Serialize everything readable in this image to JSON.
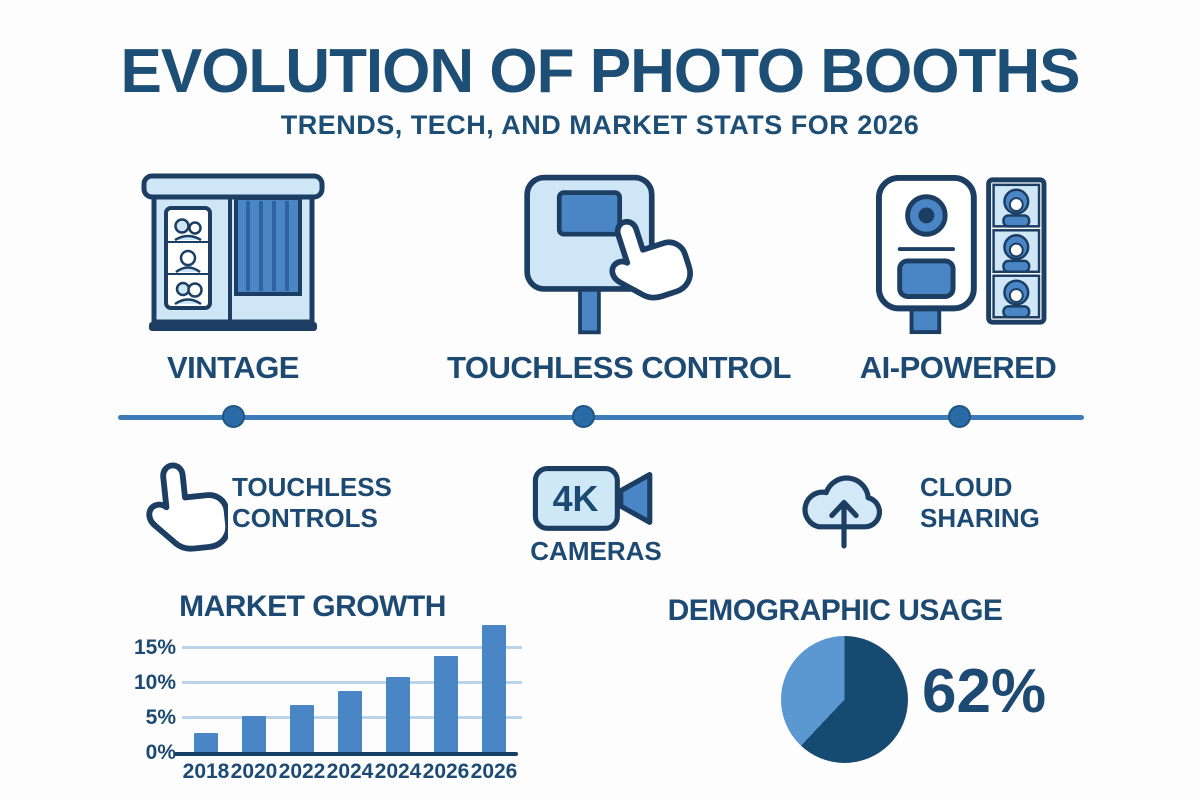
{
  "page": {
    "title": "EVOLUTION OF PHOTO BOOTHS",
    "subtitle": "TRENDS, TECH, AND MARKET STATS FOR 2026"
  },
  "eras": [
    {
      "label": "VINTAGE",
      "icon": "vintage-photo-booth-icon"
    },
    {
      "label": "TOUCHLESS CONTROL",
      "icon": "touchless-kiosk-icon"
    },
    {
      "label": "AI-POWERED",
      "icon": "ai-photo-booth-icon"
    }
  ],
  "features": [
    {
      "icon": "pointing-hand-icon",
      "lines": [
        "TOUCHLESS",
        "CONTROLS"
      ]
    },
    {
      "icon": "video-camera-icon",
      "icon_text": "4K",
      "lines": [
        "CAMERAS"
      ]
    },
    {
      "icon": "cloud-upload-icon",
      "lines": [
        "CLOUD",
        "SHARING"
      ]
    }
  ],
  "colors": {
    "navy_text": "#1d4a73",
    "outline": "#1c3e63",
    "medium_blue": "#4a86c6",
    "light_blue": "#cfe6f6",
    "timeline_blue": "#3d7ab8",
    "timeline_dot": "#2b6ba5",
    "grid_blue": "#b9d3e8",
    "pie_dark": "#174a70",
    "pie_light": "#5b97d0"
  },
  "chart_data": [
    {
      "type": "bar",
      "title": "MARKET GROWTH",
      "categories": [
        "2018",
        "2020",
        "2022",
        "2024",
        "2024",
        "2026",
        "2026"
      ],
      "values": [
        3,
        5.5,
        7,
        9,
        11,
        14,
        18.5
      ],
      "yticks": [
        0,
        5,
        10,
        15
      ],
      "ytick_labels": [
        "0%",
        "5%",
        "10%",
        "15%"
      ],
      "ylim": [
        0,
        19.5
      ],
      "grid": true,
      "legend": false,
      "bar_color": "#4a86c6"
    },
    {
      "type": "pie",
      "title": "DEMOGRAPHIC USAGE",
      "start_angle_deg": 0,
      "slices": [
        {
          "label": "62%",
          "value": 62,
          "color": "#174a70"
        },
        {
          "label": "",
          "value": 38,
          "color": "#5b97d0"
        }
      ],
      "annotation": "62%",
      "legend": false
    }
  ]
}
